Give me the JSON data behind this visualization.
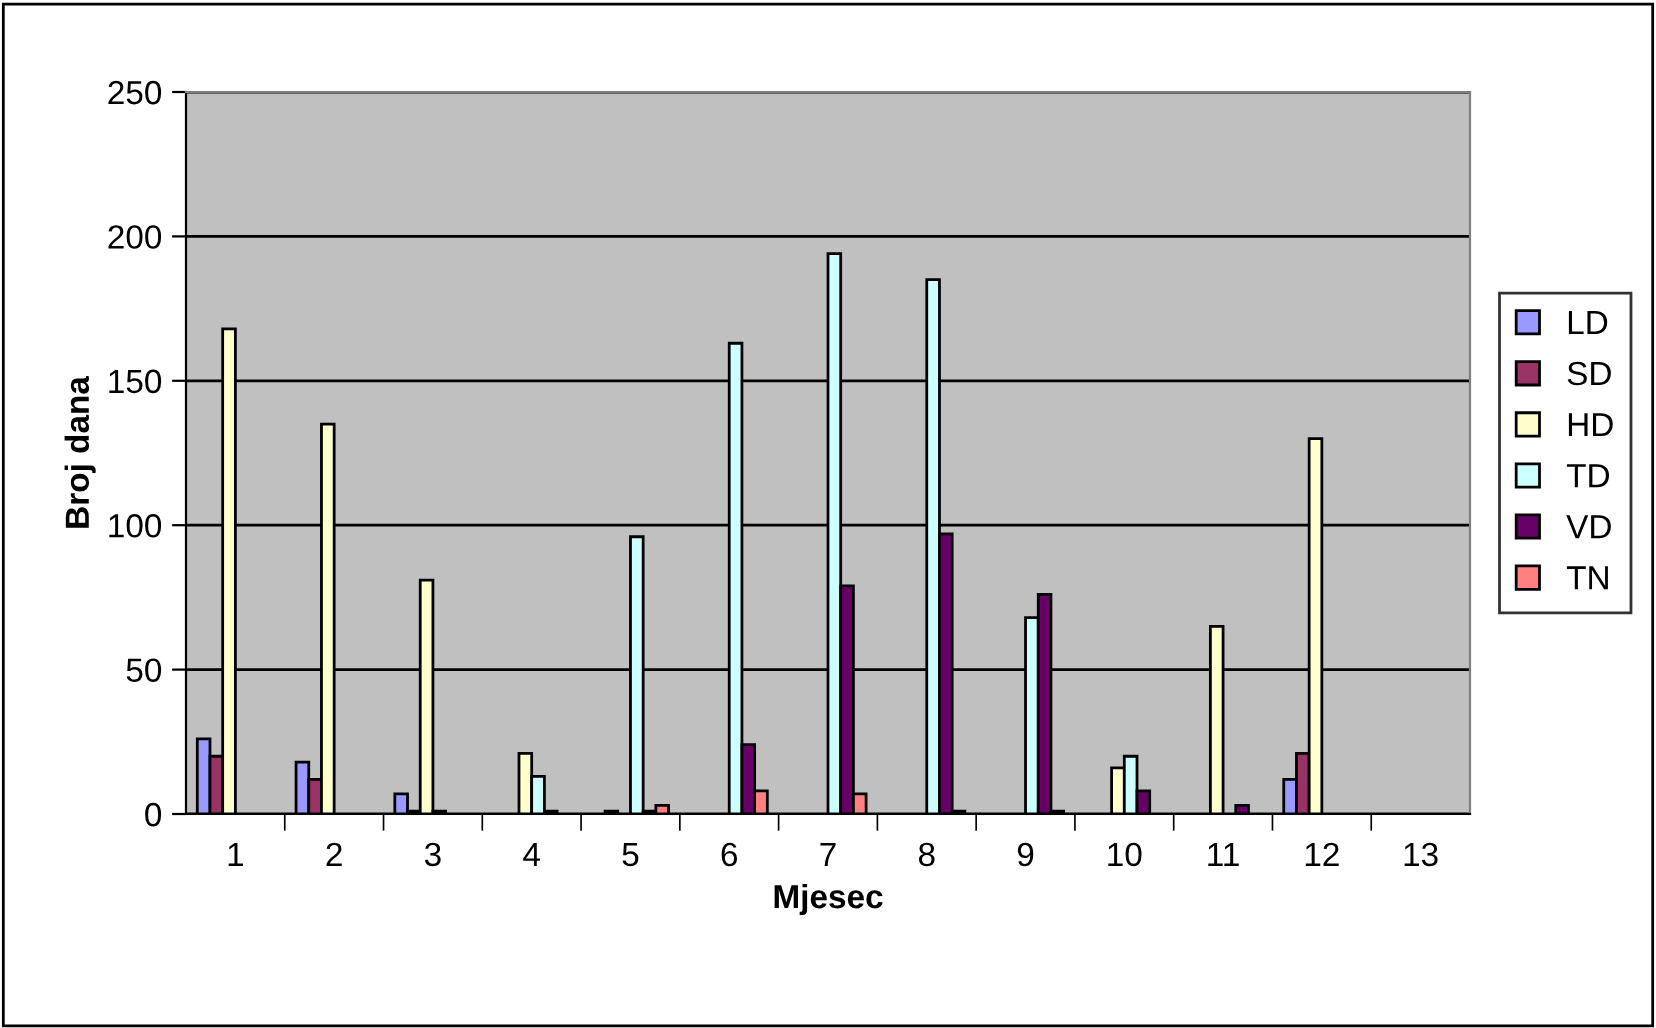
{
  "chart_data": {
    "type": "bar",
    "xlabel": "Mjesec",
    "ylabel": "Broj dana",
    "categories": [
      "1",
      "2",
      "3",
      "4",
      "5",
      "6",
      "7",
      "8",
      "9",
      "10",
      "11",
      "12",
      "13"
    ],
    "series": [
      {
        "name": "LD",
        "color": "#9999ff",
        "values": [
          26,
          18,
          7,
          null,
          null,
          null,
          null,
          null,
          null,
          null,
          null,
          12,
          null
        ]
      },
      {
        "name": "SD",
        "color": "#993366",
        "values": [
          20,
          12,
          1,
          null,
          1,
          null,
          null,
          null,
          null,
          null,
          null,
          21,
          null
        ]
      },
      {
        "name": "HD",
        "color": "#ffffcc",
        "values": [
          168,
          135,
          81,
          21,
          null,
          null,
          null,
          null,
          null,
          16,
          65,
          130,
          null
        ]
      },
      {
        "name": "TD",
        "color": "#ccffff",
        "values": [
          null,
          null,
          1,
          13,
          96,
          163,
          194,
          185,
          68,
          20,
          null,
          null,
          null
        ]
      },
      {
        "name": "VD",
        "color": "#660066",
        "values": [
          null,
          null,
          null,
          1,
          1,
          24,
          79,
          97,
          76,
          8,
          3,
          null,
          null
        ]
      },
      {
        "name": "TN",
        "color": "#ff8080",
        "values": [
          null,
          null,
          null,
          null,
          3,
          8,
          7,
          1,
          1,
          null,
          null,
          null,
          null
        ]
      }
    ],
    "ylim": [
      0,
      250
    ],
    "yticks": [
      0,
      50,
      100,
      150,
      200,
      250
    ],
    "grid": "y",
    "legend": "right"
  }
}
